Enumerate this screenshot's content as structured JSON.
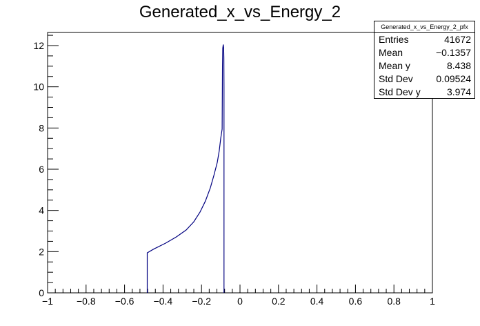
{
  "chart_data": {
    "type": "line",
    "title": "Generated_x_vs_Energy_2",
    "xlabel": "",
    "ylabel": "",
    "xlim": [
      -1,
      1
    ],
    "ylim": [
      0,
      12.6
    ],
    "xticks": [
      -1,
      -0.8,
      -0.6,
      -0.4,
      -0.2,
      0,
      0.2,
      0.4,
      0.6,
      0.8,
      1
    ],
    "xtick_labels": [
      "−1",
      "−0.8",
      "−0.6",
      "−0.4",
      "−0.2",
      "0",
      "0.2",
      "0.4",
      "0.6",
      "0.8",
      "1"
    ],
    "yticks": [
      0,
      2,
      4,
      6,
      8,
      10,
      12
    ],
    "ytick_labels": [
      "0",
      "2",
      "4",
      "6",
      "8",
      "10",
      "12"
    ],
    "grid": false,
    "series": [
      {
        "name": "Generated_x_vs_Energy_2_pfx",
        "color": "#000080",
        "x": [
          -0.482,
          -0.482,
          -0.45,
          -0.387,
          -0.33,
          -0.28,
          -0.24,
          -0.208,
          -0.18,
          -0.154,
          -0.135,
          -0.118,
          -0.108,
          -0.1,
          -0.093,
          -0.091,
          -0.0895,
          -0.087,
          -0.085,
          -0.084,
          -0.083,
          -0.083
        ],
        "y": [
          0,
          1.94,
          2.12,
          2.41,
          2.72,
          3.05,
          3.45,
          3.92,
          4.45,
          5.1,
          5.72,
          6.34,
          6.9,
          7.51,
          7.95,
          11.0,
          11.87,
          12.05,
          11.9,
          11.4,
          10.0,
          0
        ]
      }
    ],
    "stats_box": {
      "title": "Generated_x_vs_Energy_2_pfx",
      "entries": [
        {
          "label": "Entries",
          "value": "41672"
        },
        {
          "label": "Mean",
          "value": "−0.1357"
        },
        {
          "label": "Mean y",
          "value": "8.438"
        },
        {
          "label": "Std Dev",
          "value": "0.09524"
        },
        {
          "label": "Std Dev y",
          "value": "3.974"
        }
      ]
    }
  }
}
